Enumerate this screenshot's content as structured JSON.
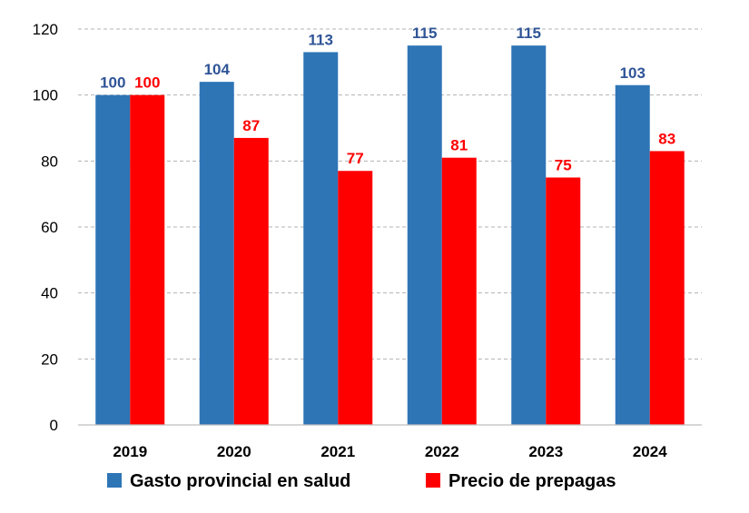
{
  "chart_data": {
    "type": "bar",
    "categories": [
      "2019",
      "2020",
      "2021",
      "2022",
      "2023",
      "2024"
    ],
    "series": [
      {
        "name": "Gasto provincial en salud",
        "values": [
          100,
          104,
          113,
          115,
          115,
          103
        ],
        "color": "#2e75b6"
      },
      {
        "name": "Precio de prepagas",
        "values": [
          100,
          87,
          77,
          81,
          75,
          83
        ],
        "color": "#ff0000"
      }
    ],
    "data_labels": [
      [
        "100",
        "104",
        "113",
        "115",
        "115",
        "103"
      ],
      [
        "100",
        "87",
        "77",
        "81",
        "75",
        "83"
      ]
    ],
    "label_colors": [
      "#2f5597",
      "#ff0000"
    ],
    "ylim": [
      0,
      120
    ],
    "yticks": [
      0,
      20,
      40,
      60,
      80,
      100,
      120
    ],
    "grid": true,
    "legend_position": "bottom"
  }
}
